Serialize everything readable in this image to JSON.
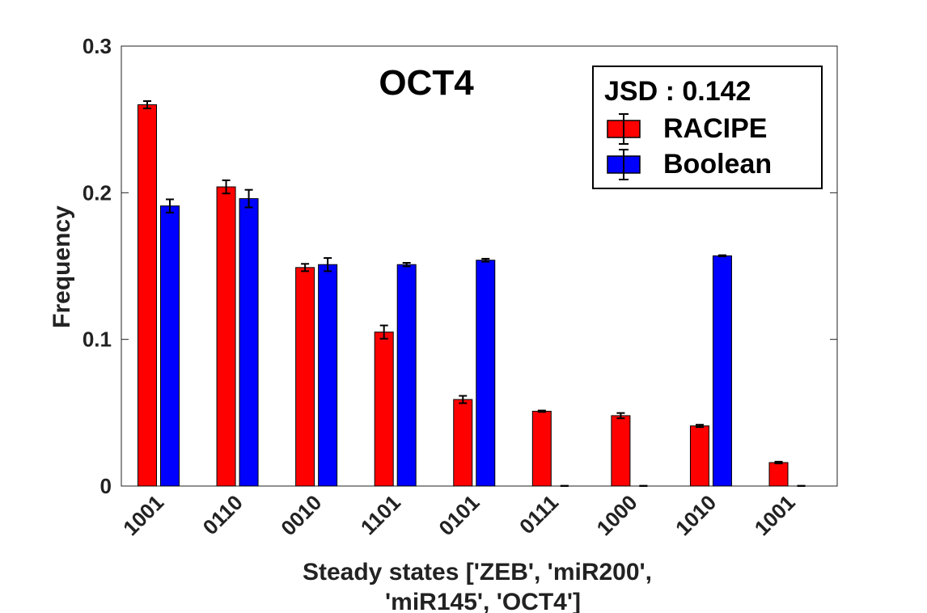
{
  "chart_data": {
    "type": "bar",
    "title": "OCT4",
    "xlabel": [
      "Steady states ['ZEB', 'miR200',",
      "'miR145', 'OCT4']"
    ],
    "ylabel": "Frequency",
    "ylim": [
      0,
      0.3
    ],
    "yticks": [
      "0",
      "0.1",
      "0.2",
      "0.3"
    ],
    "grid": false,
    "legend_position": "top-right",
    "legend_title": "JSD : 0.142",
    "categories": [
      "1001",
      "0110",
      "0010",
      "1101",
      "0101",
      "0111",
      "1000",
      "1010",
      "1001"
    ],
    "series": [
      {
        "name": "RACIPE",
        "color": "#ff0000",
        "values": [
          0.26,
          0.204,
          0.149,
          0.105,
          0.059,
          0.051,
          0.048,
          0.041,
          0.016
        ],
        "errors": [
          0.0025,
          0.0045,
          0.0025,
          0.0045,
          0.0025,
          0.0005,
          0.0018,
          0.0008,
          0.0006
        ]
      },
      {
        "name": "Boolean",
        "color": "#0000ff",
        "values": [
          0.191,
          0.196,
          0.151,
          0.151,
          0.154,
          0.0,
          0.0,
          0.157,
          0.0
        ],
        "errors": [
          0.0045,
          0.006,
          0.0045,
          0.0012,
          0.001,
          0.0002,
          0.0002,
          0.0004,
          0.0002
        ]
      }
    ]
  }
}
